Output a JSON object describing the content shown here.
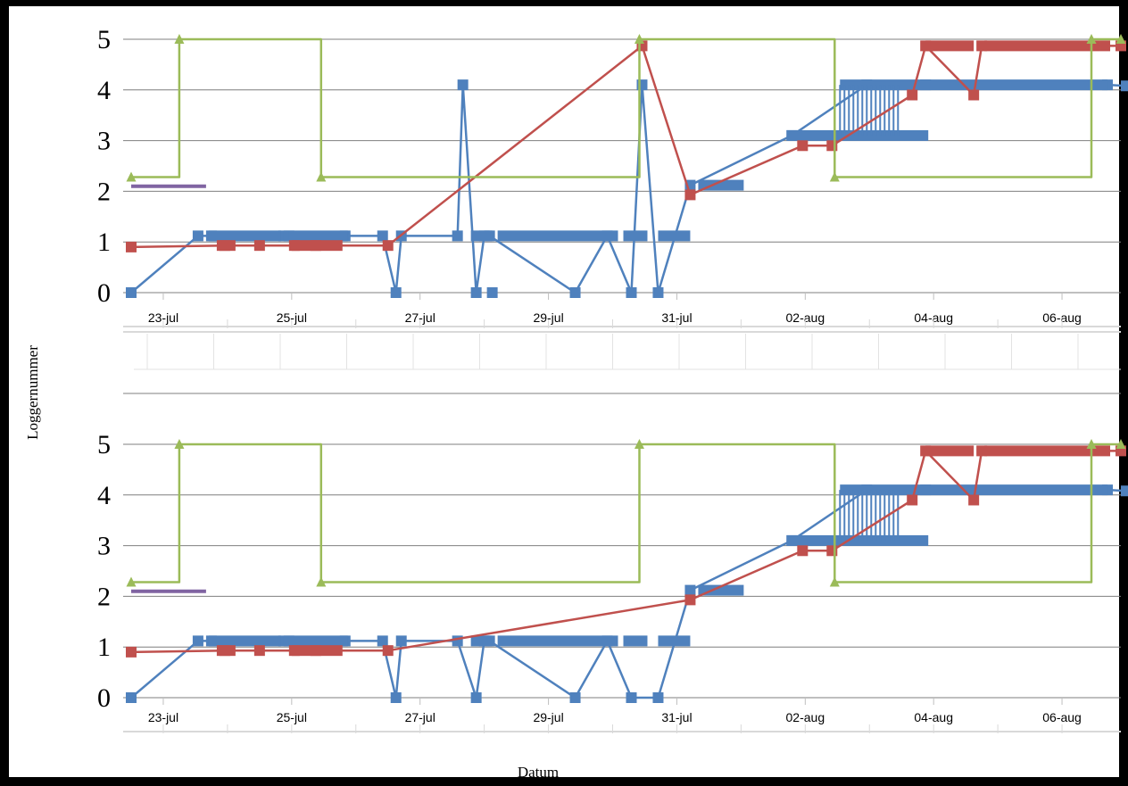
{
  "axis_titles": {
    "y": "Loggernummer",
    "x": "Datum"
  },
  "colors": {
    "blue": "#4f81bd",
    "red": "#c0504d",
    "green": "#9bbb59",
    "purple": "#8064a2",
    "grid": "#7f7f7f"
  },
  "chart_data": [
    {
      "type": "line",
      "xlabel": "",
      "ylabel": "",
      "xlim": [
        "2015-07-22T09:00",
        "2015-08-06T22:00"
      ],
      "ylim": [
        0,
        5
      ],
      "x_ticks": [
        "23-jul",
        "25-jul",
        "27-jul",
        "29-jul",
        "31-jul",
        "02-aug",
        "04-aug",
        "06-aug"
      ],
      "y_ticks": [
        "0",
        "1",
        "2",
        "3",
        "4",
        "5"
      ],
      "grid": true,
      "series": [
        {
          "color": "blue",
          "marker": "square",
          "style": "steps",
          "x": [
            "2015-07-22T12:00",
            "2015-07-23T13:00",
            "2015-07-23T18:00",
            "2015-07-24T21:00",
            "2015-07-24T23:00",
            "2015-07-25T20:00",
            "2015-07-26T10:00",
            "2015-07-26T15:00",
            "2015-07-26T17:00",
            "2015-07-27T14:00",
            "2015-07-27T16:00",
            "2015-07-27T21:00",
            "2015-07-28T00:00",
            "2015-07-28T02:00",
            "2015-07-29T10:00",
            "2015-07-29T22:00",
            "2015-07-30T07:00",
            "2015-07-30T11:00",
            "2015-07-30T17:00",
            "2015-07-31T05:00",
            "2015-08-01T19:00",
            "2015-08-02T23:00",
            "2015-08-03T21:00",
            "2015-08-06T17:00",
            "2015-08-07T00:00"
          ],
          "y": [
            0,
            1.12,
            1.12,
            1.12,
            1.12,
            1.12,
            1.12,
            0,
            1.12,
            1.12,
            4.1,
            0,
            1.12,
            1.12,
            0,
            1.12,
            0,
            4.1,
            0,
            2.12,
            3.1,
            4.1,
            4.1,
            4.1,
            4.08
          ]
        },
        {
          "color": "red",
          "marker": "square",
          "x": [
            "2015-07-22T12:00",
            "2015-07-23T23:00",
            "2015-07-24T12:00",
            "2015-07-25T01:00",
            "2015-07-25T09:00",
            "2015-07-26T12:00",
            "2015-07-30T11:00",
            "2015-07-31T05:00",
            "2015-08-01T23:00",
            "2015-08-02T10:00",
            "2015-08-03T16:00",
            "2015-08-03T21:00",
            "2015-08-04T15:00",
            "2015-08-04T18:00",
            "2015-08-06T16:00",
            "2015-08-06T22:00"
          ],
          "y": [
            0.9,
            0.93,
            0.93,
            0.93,
            0.93,
            0.93,
            4.87,
            1.93,
            2.9,
            2.9,
            3.9,
            4.87,
            3.9,
            4.87,
            4.87,
            4.87
          ]
        },
        {
          "color": "green",
          "marker": "triangle",
          "style": "steps",
          "x": [
            "2015-07-22T12:00",
            "2015-07-23T06:00",
            "2015-07-25T11:00",
            "2015-07-30T10:00",
            "2015-08-02T11:00",
            "2015-08-06T11:00",
            "2015-08-06T22:00"
          ],
          "y": [
            2.28,
            5,
            2.28,
            5,
            2.28,
            5,
            5
          ]
        },
        {
          "color": "purple",
          "marker": "none",
          "x": [
            "2015-07-22T12:00",
            "2015-07-23T16:00"
          ],
          "y": [
            2.1,
            2.1
          ]
        }
      ]
    },
    {
      "type": "line",
      "xlabel": "",
      "ylabel": "",
      "xlim": [
        "2015-07-22T09:00",
        "2015-08-06T22:00"
      ],
      "ylim": [
        0,
        5
      ],
      "x_ticks": [
        "23-jul",
        "25-jul",
        "27-jul",
        "29-jul",
        "31-jul",
        "02-aug",
        "04-aug",
        "06-aug"
      ],
      "y_ticks": [
        "0",
        "1",
        "2",
        "3",
        "4",
        "5"
      ],
      "grid": true,
      "series": [
        {
          "color": "blue",
          "marker": "square",
          "style": "steps",
          "x": [
            "2015-07-22T12:00",
            "2015-07-23T13:00",
            "2015-07-23T18:00",
            "2015-07-24T21:00",
            "2015-07-24T23:00",
            "2015-07-25T20:00",
            "2015-07-26T10:00",
            "2015-07-26T15:00",
            "2015-07-26T17:00",
            "2015-07-27T14:00",
            "2015-07-27T21:00",
            "2015-07-28T00:00",
            "2015-07-28T02:00",
            "2015-07-29T10:00",
            "2015-07-29T22:00",
            "2015-07-30T07:00",
            "2015-07-30T17:00",
            "2015-07-31T05:00",
            "2015-08-01T19:00",
            "2015-08-02T23:00",
            "2015-08-03T21:00",
            "2015-08-06T17:00",
            "2015-08-07T00:00"
          ],
          "y": [
            0,
            1.12,
            1.12,
            1.12,
            1.12,
            1.12,
            1.12,
            0,
            1.12,
            1.12,
            0,
            1.12,
            1.12,
            0,
            1.12,
            0,
            0,
            2.12,
            3.1,
            4.1,
            4.1,
            4.1,
            4.08
          ]
        },
        {
          "color": "red",
          "marker": "square",
          "x": [
            "2015-07-22T12:00",
            "2015-07-23T23:00",
            "2015-07-24T12:00",
            "2015-07-25T01:00",
            "2015-07-25T09:00",
            "2015-07-26T12:00",
            "2015-07-31T05:00",
            "2015-08-01T23:00",
            "2015-08-02T10:00",
            "2015-08-03T16:00",
            "2015-08-03T21:00",
            "2015-08-04T15:00",
            "2015-08-04T18:00",
            "2015-08-06T16:00",
            "2015-08-06T22:00"
          ],
          "y": [
            0.9,
            0.93,
            0.93,
            0.93,
            0.93,
            0.93,
            1.93,
            2.9,
            2.9,
            3.9,
            4.87,
            3.9,
            4.87,
            4.87,
            4.87
          ]
        },
        {
          "color": "green",
          "marker": "triangle",
          "style": "steps",
          "x": [
            "2015-07-22T12:00",
            "2015-07-23T06:00",
            "2015-07-25T11:00",
            "2015-07-30T10:00",
            "2015-08-02T11:00",
            "2015-08-06T11:00",
            "2015-08-06T22:00"
          ],
          "y": [
            2.28,
            5,
            2.28,
            5,
            2.28,
            5,
            5
          ]
        },
        {
          "color": "purple",
          "marker": "none",
          "x": [
            "2015-07-22T12:00",
            "2015-07-23T16:00"
          ],
          "y": [
            2.1,
            2.1
          ]
        }
      ]
    }
  ]
}
